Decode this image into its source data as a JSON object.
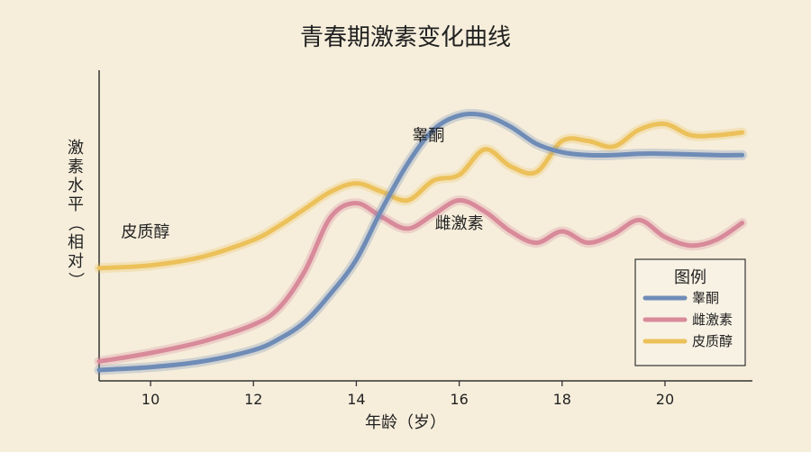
{
  "chart_data": {
    "type": "line",
    "title": "青春期激素变化曲线",
    "xlabel": "年龄（岁）",
    "ylabel": "激素水平（相对）",
    "xlim": [
      9,
      21.7
    ],
    "ylim": [
      0,
      100
    ],
    "xticks": [
      10,
      12,
      14,
      16,
      18,
      20
    ],
    "grid": false,
    "legend": {
      "title": "图例",
      "position": "bottom-right",
      "entries": [
        "睾酮",
        "雌激素",
        "皮质醇"
      ]
    },
    "series": [
      {
        "name": "睾酮",
        "color": "#6f8cb7",
        "x": [
          9,
          10,
          11,
          12,
          12.5,
          13,
          13.5,
          14,
          14.5,
          15,
          15.5,
          16,
          16.5,
          17,
          17.5,
          18,
          18.5,
          19,
          19.5,
          20,
          21,
          21.5
        ],
        "y": [
          1,
          2,
          4,
          8,
          12,
          18,
          28,
          40,
          58,
          74,
          86,
          91,
          91,
          87,
          81,
          78,
          77,
          77,
          77.5,
          77.5,
          77,
          77
        ]
      },
      {
        "name": "雌激素",
        "color": "#d88a9a",
        "x": [
          9,
          10,
          11,
          12,
          12.5,
          13,
          13.5,
          14,
          14.5,
          15,
          15.5,
          16,
          16.5,
          17,
          17.5,
          18,
          18.5,
          19,
          19.5,
          20,
          20.5,
          21,
          21.5
        ],
        "y": [
          4,
          7,
          11,
          17,
          23,
          36,
          55,
          60,
          55,
          51,
          56,
          61,
          57,
          50,
          46,
          50,
          46,
          49,
          54,
          48,
          45,
          47,
          53
        ]
      },
      {
        "name": "皮质醇",
        "color": "#ecc15a",
        "x": [
          9,
          10,
          11,
          12,
          12.5,
          13,
          13.5,
          14,
          14.5,
          15,
          15.5,
          16,
          16.5,
          17,
          17.5,
          18,
          18.5,
          19,
          19.5,
          20,
          20.5,
          21,
          21.5
        ],
        "y": [
          37,
          38,
          41,
          47,
          52,
          58,
          64,
          67,
          64,
          61,
          68,
          70,
          79,
          73,
          71,
          82,
          82,
          80,
          86,
          88,
          84,
          84,
          85
        ]
      }
    ],
    "annotations": [
      {
        "text": "睾酮",
        "x": 15.4,
        "y": 82
      },
      {
        "text": "雌激素",
        "x": 16.0,
        "y": 51
      },
      {
        "text": "皮质醇",
        "x": 9.9,
        "y": 48
      }
    ]
  }
}
